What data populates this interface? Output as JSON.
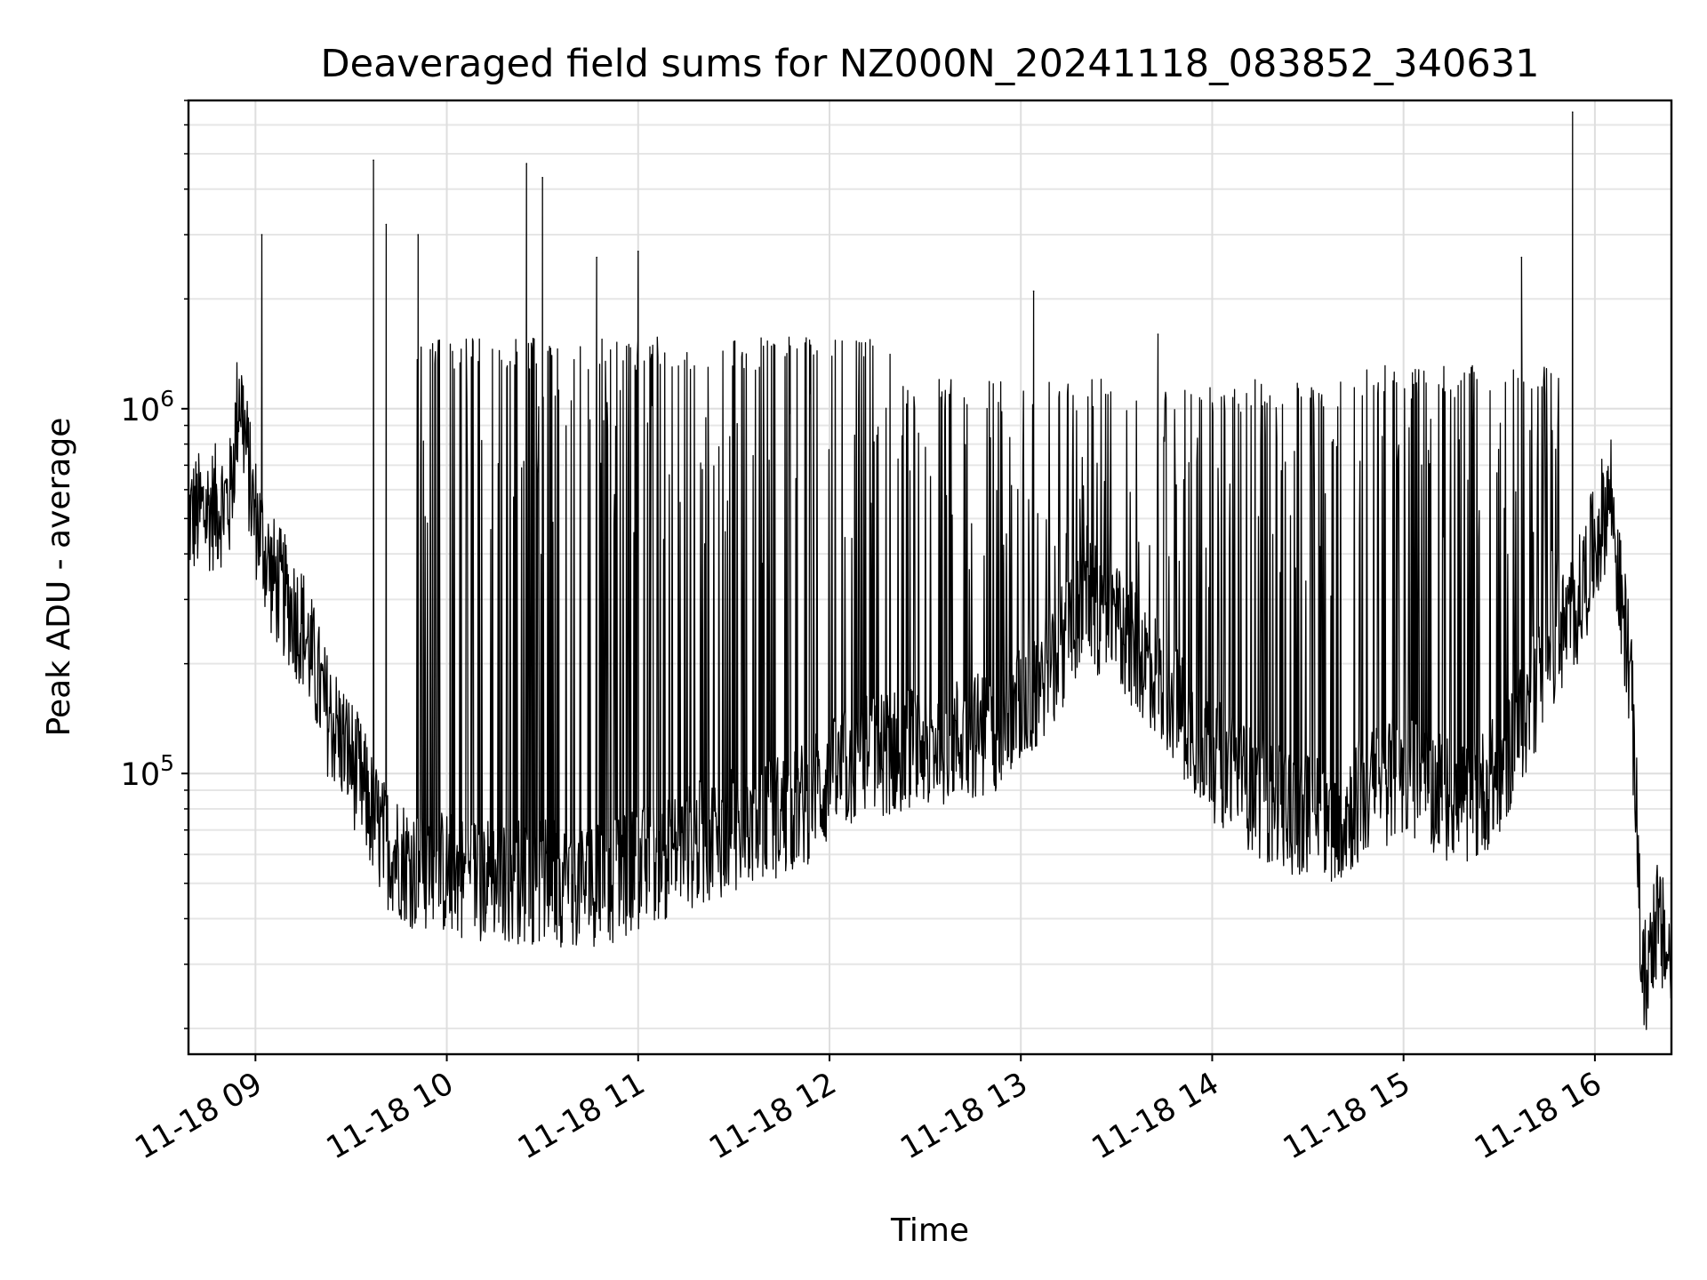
{
  "chart_data": {
    "type": "line",
    "title": "Deaveraged field sums for NZ000N_20241118_083852_340631",
    "xlabel": "Time",
    "ylabel": "Peak ADU - average",
    "yscale": "log",
    "xlim": [
      "2024-11-18 08:39",
      "2024-11-18 16:24"
    ],
    "ylim": [
      17000,
      7000000
    ],
    "grid": true,
    "line_color": "#000000",
    "x_ticks": [
      "11-18 09",
      "11-18 10",
      "11-18 11",
      "11-18 12",
      "11-18 13",
      "11-18 14",
      "11-18 15",
      "11-18 16"
    ],
    "x_tick_times": [
      "2024-11-18 09:00",
      "2024-11-18 10:00",
      "2024-11-18 11:00",
      "2024-11-18 12:00",
      "2024-11-18 13:00",
      "2024-11-18 14:00",
      "2024-11-18 15:00",
      "2024-11-18 16:00"
    ],
    "y_ticks": [
      {
        "value": 100000,
        "base": "10",
        "exp": "5"
      },
      {
        "value": 1000000,
        "base": "10",
        "exp": "6"
      }
    ],
    "series": [
      {
        "baseline": {
          "x": [
            "2024-11-18 08:39",
            "2024-11-18 08:52",
            "2024-11-18 08:55",
            "2024-11-18 08:57",
            "2024-11-18 08:59",
            "2024-11-18 09:05",
            "2024-11-18 09:15",
            "2024-11-18 09:22",
            "2024-11-18 09:30",
            "2024-11-18 09:40",
            "2024-11-18 09:50",
            "2024-11-18 10:10",
            "2024-11-18 10:30",
            "2024-11-18 10:50",
            "2024-11-18 11:10",
            "2024-11-18 11:30",
            "2024-11-18 11:50",
            "2024-11-18 12:10",
            "2024-11-18 12:30",
            "2024-11-18 12:50",
            "2024-11-18 13:00",
            "2024-11-18 13:10",
            "2024-11-18 13:20",
            "2024-11-18 13:30",
            "2024-11-18 13:40",
            "2024-11-18 13:50",
            "2024-11-18 14:00",
            "2024-11-18 14:20",
            "2024-11-18 14:40",
            "2024-11-18 14:50",
            "2024-11-18 15:00",
            "2024-11-18 15:10",
            "2024-11-18 15:20",
            "2024-11-18 15:30",
            "2024-11-18 15:45",
            "2024-11-18 15:55",
            "2024-11-18 16:05",
            "2024-11-18 16:08",
            "2024-11-18 16:11",
            "2024-11-18 16:13",
            "2024-11-18 16:15",
            "2024-11-18 16:19",
            "2024-11-18 16:24"
          ],
          "y": [
            500000,
            560000,
            1150000,
            800000,
            550000,
            350000,
            250000,
            150000,
            110000,
            65000,
            55000,
            52000,
            50000,
            50000,
            60000,
            70000,
            80000,
            110000,
            120000,
            130000,
            150000,
            200000,
            300000,
            250000,
            200000,
            150000,
            110000,
            80000,
            75000,
            90000,
            100000,
            90000,
            80000,
            100000,
            200000,
            300000,
            600000,
            300000,
            200000,
            80000,
            25000,
            40000,
            30000
          ]
        },
        "spikes": {
          "x": [
            "2024-11-18 09:02",
            "2024-11-18 09:37",
            "2024-11-18 09:41",
            "2024-11-18 09:51",
            "2024-11-18 10:25",
            "2024-11-18 10:30",
            "2024-11-18 10:47",
            "2024-11-18 11:00",
            "2024-11-18 13:04",
            "2024-11-18 13:43",
            "2024-11-18 15:37",
            "2024-11-18 15:53"
          ],
          "y": [
            3000000,
            4800000,
            3200000,
            3000000,
            4700000,
            4300000,
            2600000,
            2700000,
            2100000,
            1600000,
            2600000,
            6500000
          ]
        },
        "plateau": [
          {
            "from": "2024-11-18 09:50",
            "to": "2024-11-18 12:20",
            "level": 1500000
          },
          {
            "from": "2024-11-18 12:20",
            "to": "2024-11-18 14:40",
            "level": 1150000
          },
          {
            "from": "2024-11-18 14:40",
            "to": "2024-11-18 15:50",
            "level": 1250000
          }
        ]
      }
    ]
  }
}
